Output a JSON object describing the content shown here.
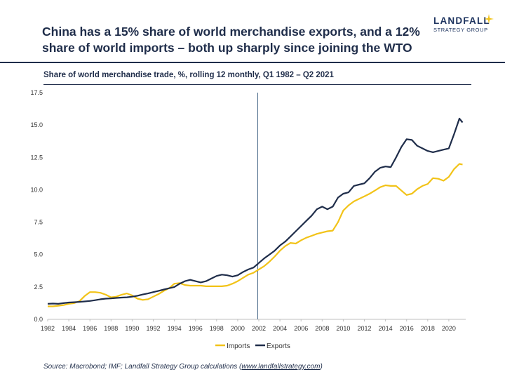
{
  "header": {
    "title": "China has a 15% share of world merchandise exports, and a 12% share of world imports – both up sharply since joining the WTO",
    "logo_main": "LANDFALL",
    "logo_sub": "STRATEGY GROUP"
  },
  "footer": {
    "source_prefix": "Source: Macrobond; IMF; Landfall Strategy Group calculations (",
    "source_link": "www.landfallstrategy.com",
    "source_suffix": ")"
  },
  "colors": {
    "imports": "#f2c318",
    "exports": "#1f2d4a",
    "grid": "#d9d9d9"
  },
  "chart_data": {
    "type": "line",
    "title": "Share of world merchandise trade, %, rolling 12 monthly, Q1 1982 – Q2 2021",
    "xlabel": "",
    "ylabel": "",
    "xlim": [
      1982,
      2021.6
    ],
    "ylim": [
      0,
      17.5
    ],
    "x_ticks": [
      "1982",
      "1984",
      "1986",
      "1988",
      "1990",
      "1992",
      "1994",
      "1996",
      "1998",
      "2000",
      "2002",
      "2004",
      "2006",
      "2008",
      "2010",
      "2012",
      "2014",
      "2016",
      "2018",
      "2020"
    ],
    "y_ticks": [
      "0.0",
      "2.5",
      "5.0",
      "7.5",
      "10.0",
      "12.5",
      "15.0",
      "17.5"
    ],
    "grid": false,
    "legend": "bottom-center",
    "vertical_marker_x": 2001.9,
    "series": [
      {
        "name": "Imports",
        "color": "#f2c318",
        "points": [
          [
            1982,
            1.0
          ],
          [
            1982.5,
            1.0
          ],
          [
            1983,
            1.05
          ],
          [
            1983.5,
            1.1
          ],
          [
            1984,
            1.2
          ],
          [
            1984.5,
            1.25
          ],
          [
            1985,
            1.4
          ],
          [
            1985.5,
            1.8
          ],
          [
            1986,
            2.1
          ],
          [
            1986.5,
            2.1
          ],
          [
            1987,
            2.05
          ],
          [
            1987.5,
            1.9
          ],
          [
            1988,
            1.7
          ],
          [
            1988.5,
            1.75
          ],
          [
            1989,
            1.9
          ],
          [
            1989.5,
            2.0
          ],
          [
            1990,
            1.85
          ],
          [
            1990.5,
            1.6
          ],
          [
            1991,
            1.5
          ],
          [
            1991.5,
            1.55
          ],
          [
            1992,
            1.75
          ],
          [
            1992.5,
            1.95
          ],
          [
            1993,
            2.2
          ],
          [
            1993.5,
            2.4
          ],
          [
            1994,
            2.75
          ],
          [
            1994.5,
            2.8
          ],
          [
            1995,
            2.65
          ],
          [
            1995.5,
            2.6
          ],
          [
            1996,
            2.6
          ],
          [
            1996.5,
            2.6
          ],
          [
            1997,
            2.55
          ],
          [
            1997.5,
            2.55
          ],
          [
            1998,
            2.55
          ],
          [
            1998.5,
            2.55
          ],
          [
            1999,
            2.6
          ],
          [
            1999.5,
            2.75
          ],
          [
            2000,
            2.95
          ],
          [
            2000.5,
            3.2
          ],
          [
            2001,
            3.45
          ],
          [
            2001.5,
            3.6
          ],
          [
            2002,
            3.85
          ],
          [
            2002.5,
            4.1
          ],
          [
            2003,
            4.45
          ],
          [
            2003.5,
            4.85
          ],
          [
            2004,
            5.3
          ],
          [
            2004.5,
            5.65
          ],
          [
            2005,
            5.9
          ],
          [
            2005.5,
            5.85
          ],
          [
            2006,
            6.1
          ],
          [
            2006.5,
            6.3
          ],
          [
            2007,
            6.45
          ],
          [
            2007.5,
            6.6
          ],
          [
            2008,
            6.7
          ],
          [
            2008.5,
            6.8
          ],
          [
            2009,
            6.85
          ],
          [
            2009.5,
            7.5
          ],
          [
            2010,
            8.4
          ],
          [
            2010.5,
            8.8
          ],
          [
            2011,
            9.1
          ],
          [
            2011.5,
            9.3
          ],
          [
            2012,
            9.5
          ],
          [
            2012.5,
            9.7
          ],
          [
            2013,
            9.95
          ],
          [
            2013.5,
            10.2
          ],
          [
            2014,
            10.35
          ],
          [
            2014.5,
            10.3
          ],
          [
            2015,
            10.3
          ],
          [
            2015.5,
            9.95
          ],
          [
            2016,
            9.6
          ],
          [
            2016.5,
            9.7
          ],
          [
            2017,
            10.05
          ],
          [
            2017.5,
            10.3
          ],
          [
            2018,
            10.45
          ],
          [
            2018.5,
            10.9
          ],
          [
            2019,
            10.85
          ],
          [
            2019.5,
            10.7
          ],
          [
            2020,
            11.0
          ],
          [
            2020.5,
            11.6
          ],
          [
            2021,
            12.0
          ],
          [
            2021.3,
            11.95
          ]
        ]
      },
      {
        "name": "Exports",
        "color": "#1f2d4a",
        "points": [
          [
            1982,
            1.2
          ],
          [
            1982.5,
            1.22
          ],
          [
            1983,
            1.2
          ],
          [
            1983.5,
            1.25
          ],
          [
            1984,
            1.3
          ],
          [
            1984.5,
            1.32
          ],
          [
            1985,
            1.35
          ],
          [
            1985.5,
            1.38
          ],
          [
            1986,
            1.42
          ],
          [
            1986.5,
            1.48
          ],
          [
            1987,
            1.55
          ],
          [
            1987.5,
            1.6
          ],
          [
            1988,
            1.62
          ],
          [
            1988.5,
            1.65
          ],
          [
            1989,
            1.68
          ],
          [
            1989.5,
            1.7
          ],
          [
            1990,
            1.75
          ],
          [
            1990.5,
            1.82
          ],
          [
            1991,
            1.92
          ],
          [
            1991.5,
            2.0
          ],
          [
            1992,
            2.1
          ],
          [
            1992.5,
            2.2
          ],
          [
            1993,
            2.3
          ],
          [
            1993.5,
            2.4
          ],
          [
            1994,
            2.5
          ],
          [
            1994.5,
            2.75
          ],
          [
            1995,
            2.95
          ],
          [
            1995.5,
            3.05
          ],
          [
            1996,
            2.95
          ],
          [
            1996.5,
            2.85
          ],
          [
            1997,
            2.95
          ],
          [
            1997.5,
            3.15
          ],
          [
            1998,
            3.35
          ],
          [
            1998.5,
            3.45
          ],
          [
            1999,
            3.4
          ],
          [
            1999.5,
            3.3
          ],
          [
            2000,
            3.4
          ],
          [
            2000.5,
            3.65
          ],
          [
            2001,
            3.85
          ],
          [
            2001.5,
            4.0
          ],
          [
            2002,
            4.35
          ],
          [
            2002.5,
            4.7
          ],
          [
            2003,
            5.0
          ],
          [
            2003.5,
            5.3
          ],
          [
            2004,
            5.7
          ],
          [
            2004.5,
            6.0
          ],
          [
            2005,
            6.4
          ],
          [
            2005.5,
            6.8
          ],
          [
            2006,
            7.2
          ],
          [
            2006.5,
            7.6
          ],
          [
            2007,
            8.0
          ],
          [
            2007.5,
            8.5
          ],
          [
            2008,
            8.7
          ],
          [
            2008.5,
            8.5
          ],
          [
            2009,
            8.7
          ],
          [
            2009.5,
            9.4
          ],
          [
            2010,
            9.7
          ],
          [
            2010.5,
            9.8
          ],
          [
            2011,
            10.3
          ],
          [
            2011.5,
            10.4
          ],
          [
            2012,
            10.5
          ],
          [
            2012.5,
            10.9
          ],
          [
            2013,
            11.4
          ],
          [
            2013.5,
            11.7
          ],
          [
            2014,
            11.8
          ],
          [
            2014.5,
            11.75
          ],
          [
            2015,
            12.5
          ],
          [
            2015.5,
            13.3
          ],
          [
            2016,
            13.9
          ],
          [
            2016.5,
            13.85
          ],
          [
            2017,
            13.4
          ],
          [
            2017.5,
            13.2
          ],
          [
            2018,
            13.0
          ],
          [
            2018.5,
            12.9
          ],
          [
            2019,
            13.0
          ],
          [
            2019.5,
            13.1
          ],
          [
            2020,
            13.2
          ],
          [
            2020.5,
            14.3
          ],
          [
            2021,
            15.5
          ],
          [
            2021.3,
            15.2
          ]
        ]
      }
    ]
  }
}
